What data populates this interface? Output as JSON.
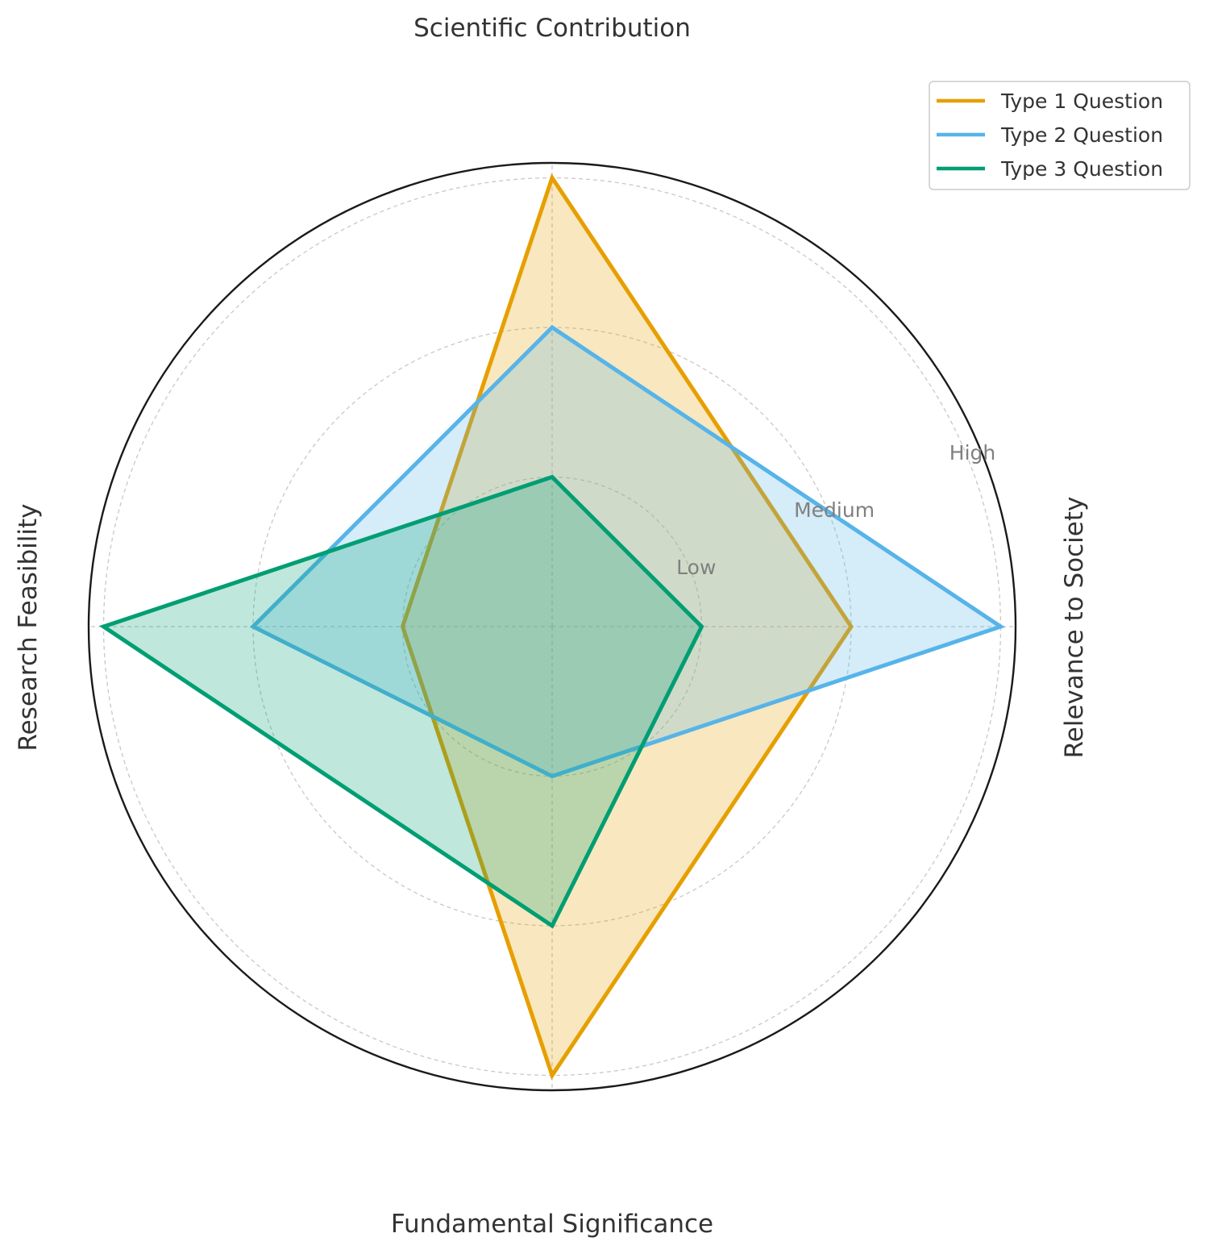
{
  "chart_data": {
    "type": "radar",
    "title": "",
    "axes": [
      "Scientific Contribution",
      "Relevance to Society",
      "Fundamental Significance",
      "Research Feasibility"
    ],
    "levels": [
      "Low",
      "Medium",
      "High"
    ],
    "rmax": 3.1,
    "grid": true,
    "legend_position": "top-right",
    "series": [
      {
        "name": "Type 1 Question",
        "values": [
          3,
          2,
          3,
          1
        ],
        "color": "#E69F00"
      },
      {
        "name": "Type 2 Question",
        "values": [
          2,
          3,
          1,
          2
        ],
        "color": "#56B4E9"
      },
      {
        "name": "Type 3 Question",
        "values": [
          1,
          1,
          2,
          3
        ],
        "color": "#009E73"
      }
    ]
  }
}
